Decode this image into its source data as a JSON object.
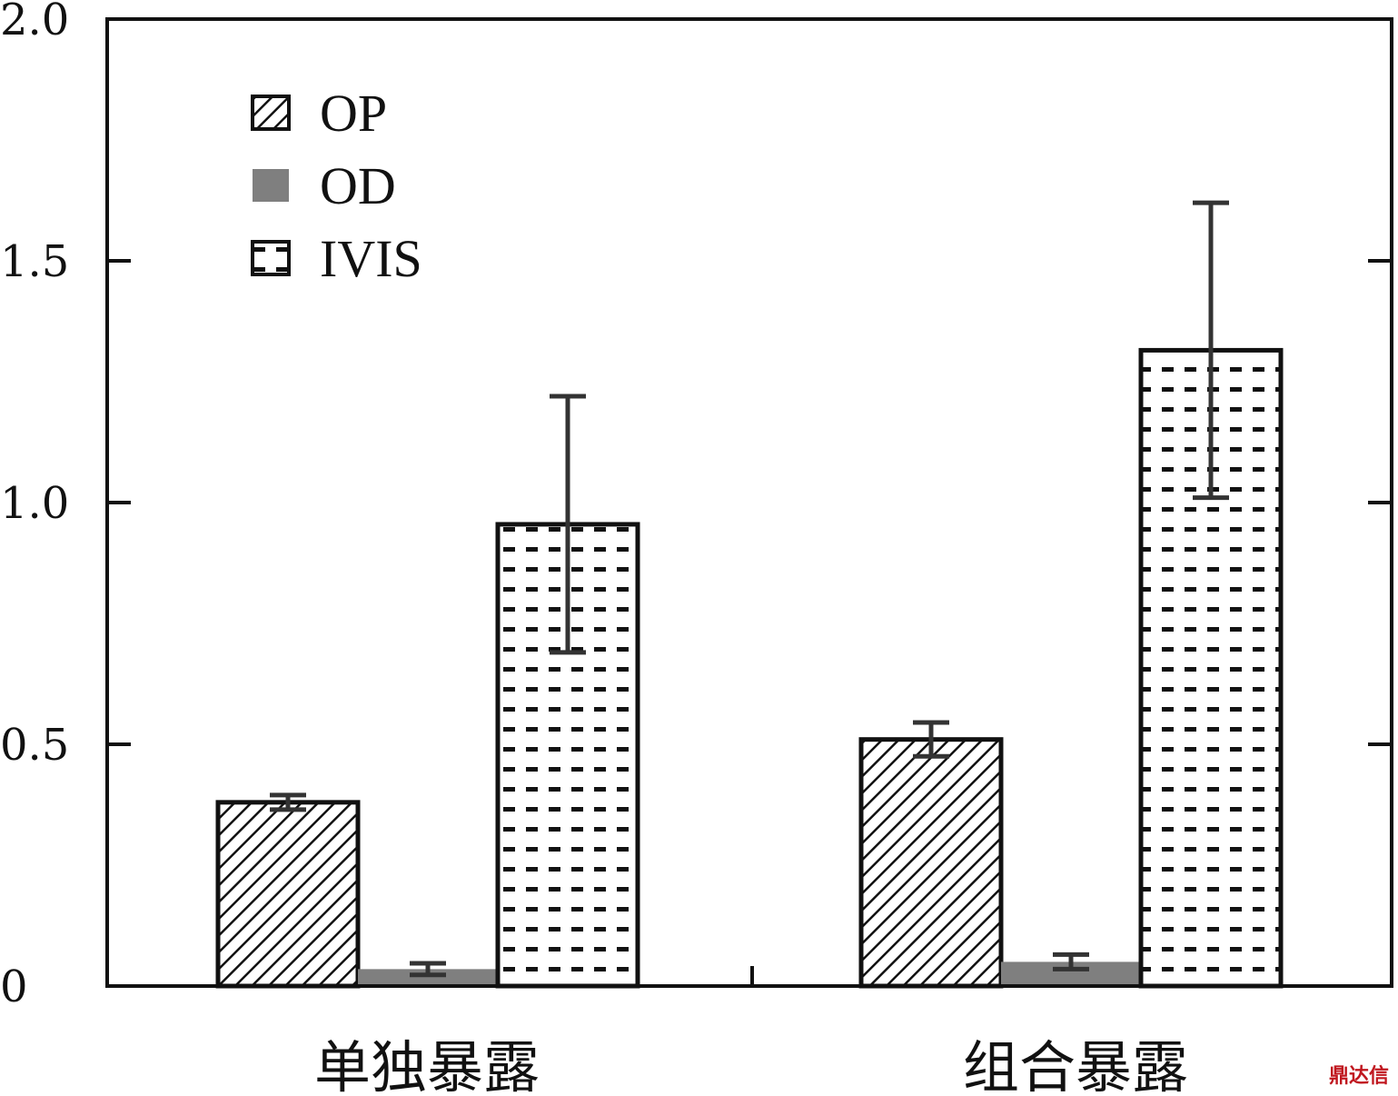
{
  "chart_data": {
    "type": "bar",
    "categories": [
      "单独暴露",
      "组合暴露"
    ],
    "series": [
      {
        "name": "OP",
        "pattern": "diagonal-hatch",
        "values": [
          0.38,
          0.51
        ],
        "errors": [
          0.015,
          0.035
        ]
      },
      {
        "name": "OD",
        "pattern": "solid-gray",
        "values": [
          0.035,
          0.05
        ],
        "errors": [
          0.012,
          0.015
        ]
      },
      {
        "name": "IVIS",
        "pattern": "dashed-dots",
        "values": [
          0.955,
          1.315
        ],
        "errors": [
          0.265,
          0.305
        ]
      }
    ],
    "yticks": [
      "0",
      "0.5",
      "1.0",
      "1.5",
      "2.0"
    ],
    "ylim": [
      0,
      2.0
    ],
    "grid": false,
    "legend_position": "top-left"
  },
  "colors": {
    "solid_gray": "#7f7f7f",
    "ink": "#111111"
  },
  "watermark": "鼎达信"
}
